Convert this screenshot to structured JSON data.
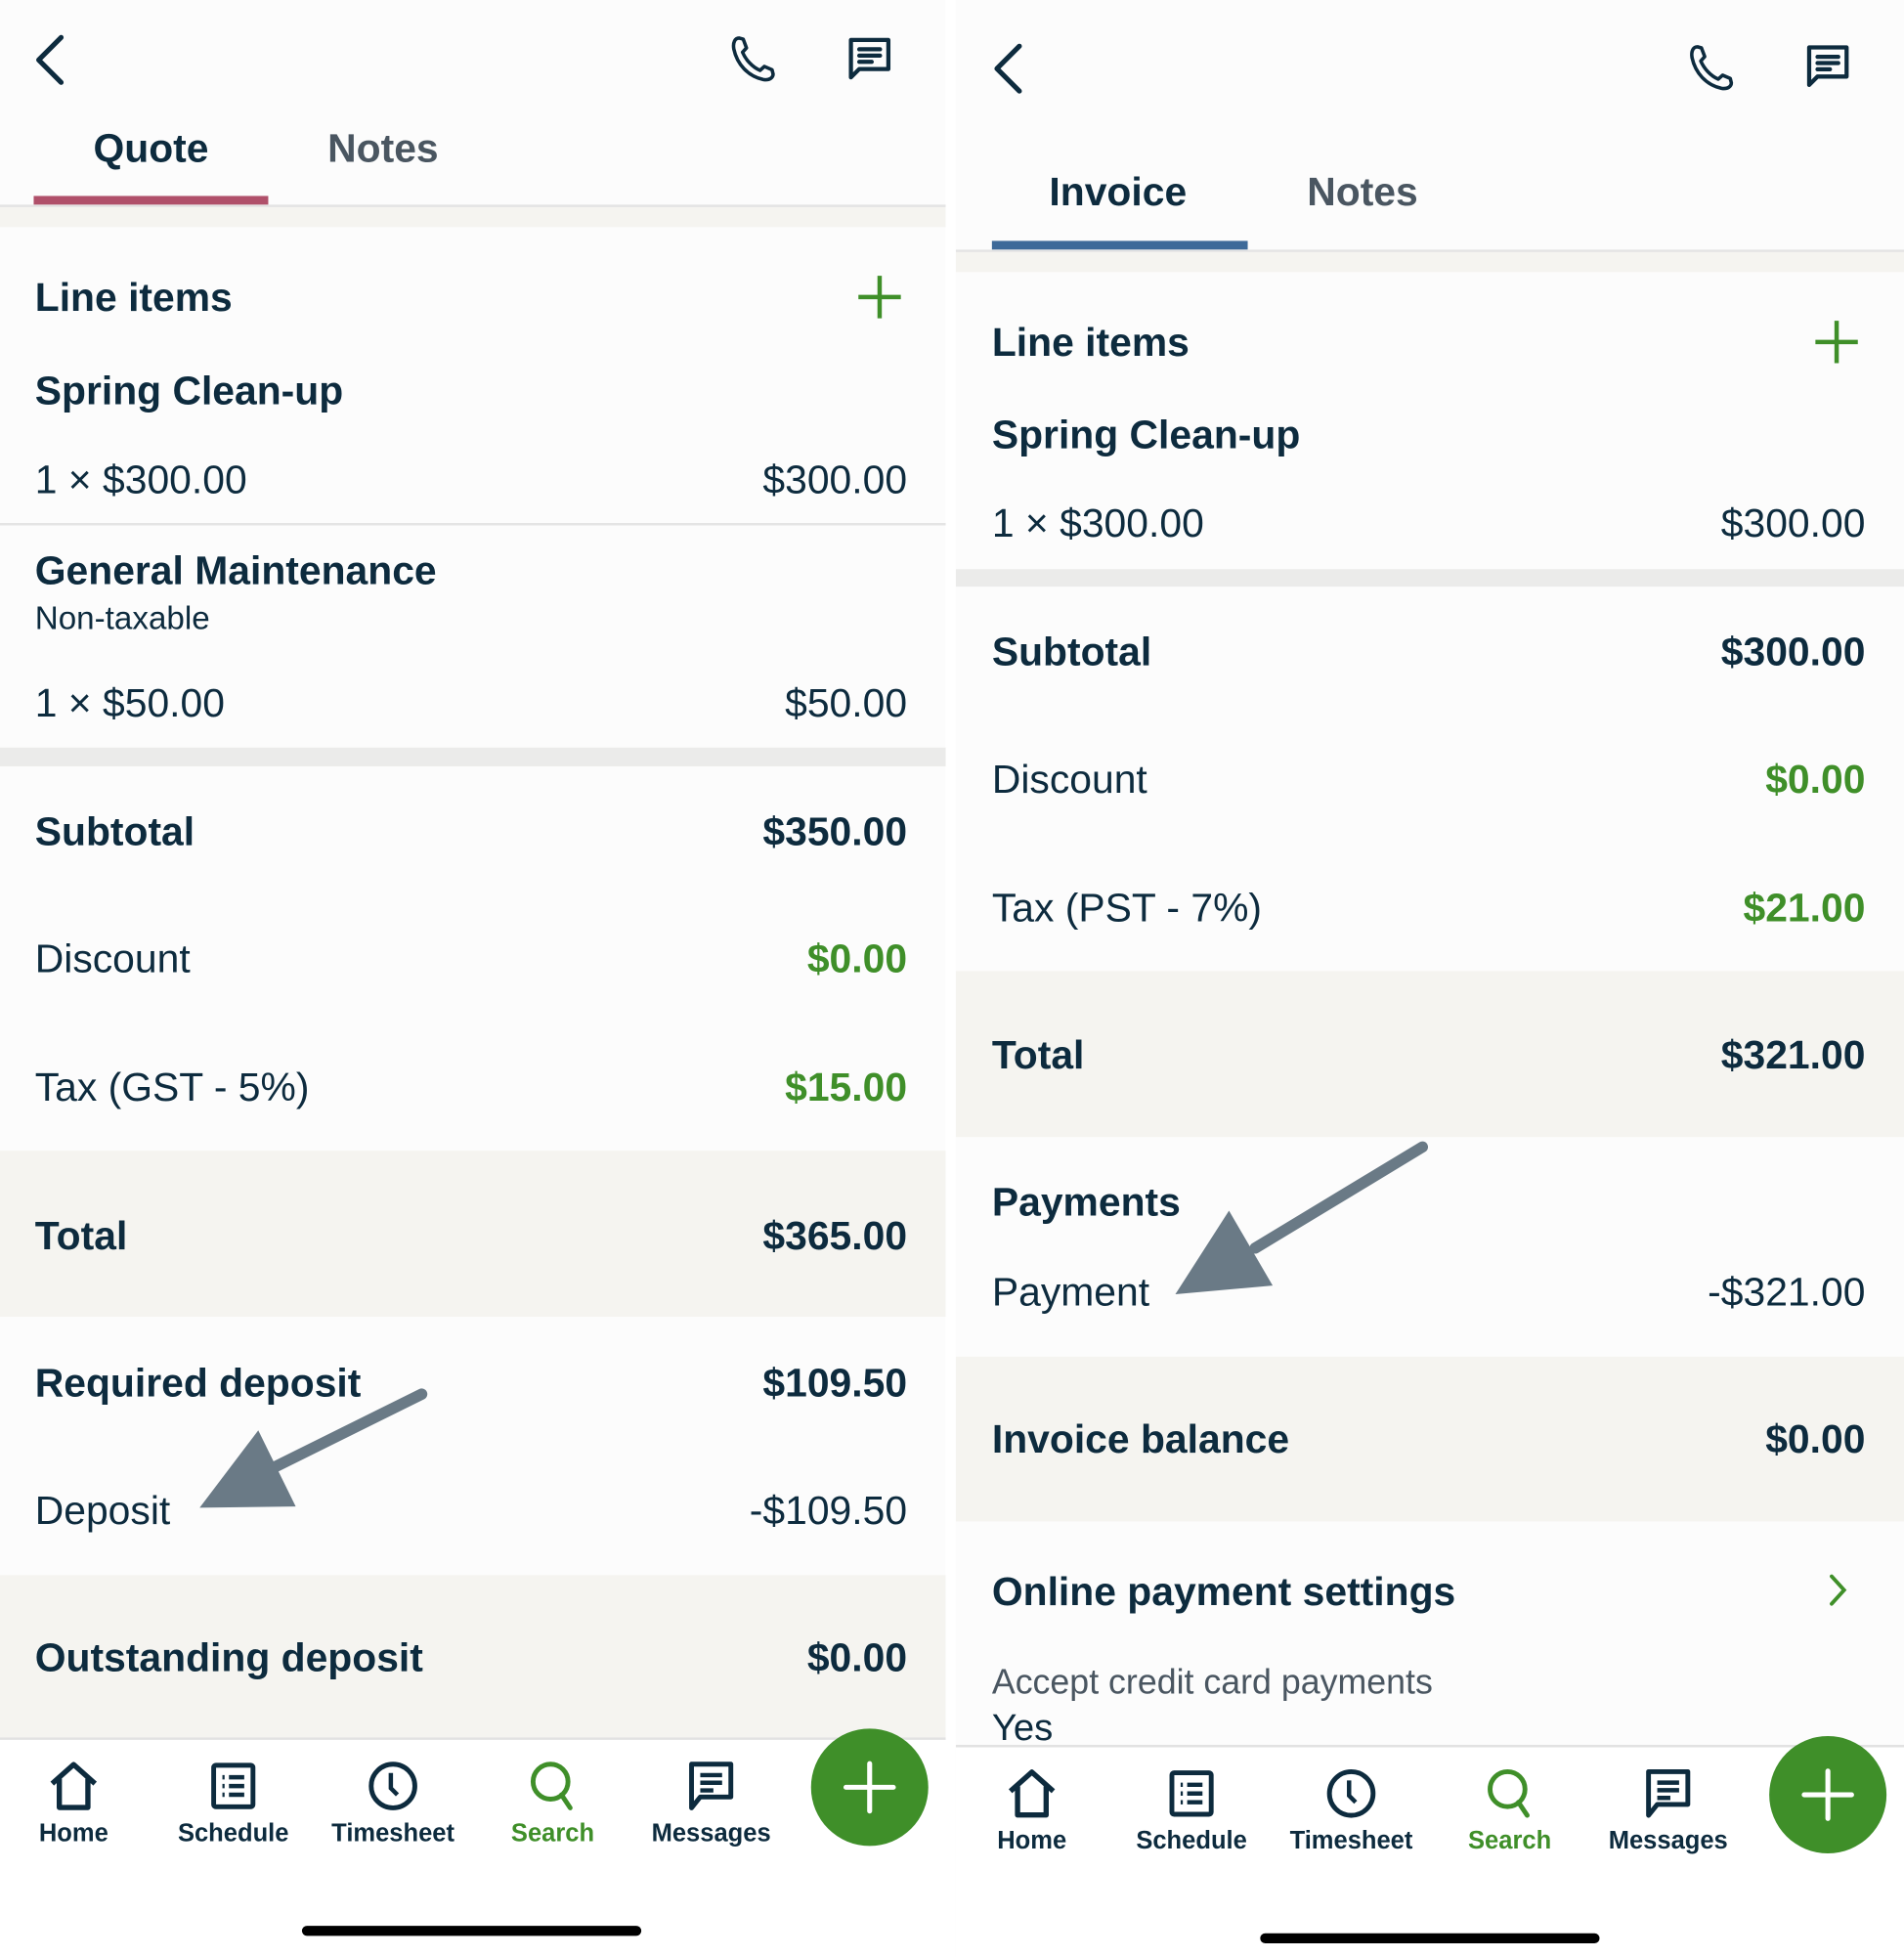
{
  "colors": {
    "text": "#0d2b3e",
    "green": "#3f8f29",
    "quote_tab": "#b0506a",
    "invoice_tab": "#3d6a99",
    "band": "#f5f4f0",
    "arrow": "#6a7a86"
  },
  "quote": {
    "tabs": [
      {
        "label": "Quote",
        "active": true
      },
      {
        "label": "Notes",
        "active": false
      }
    ],
    "line_items_title": "Line items",
    "items": [
      {
        "name": "Spring Clean-up",
        "qty_price": "1 × $300.00",
        "total": "$300.00"
      },
      {
        "name": "General Maintenance",
        "note": "Non-taxable",
        "qty_price": "1 × $50.00",
        "total": "$50.00"
      }
    ],
    "subtotal": {
      "label": "Subtotal",
      "value": "$350.00"
    },
    "discount": {
      "label": "Discount",
      "value": "$0.00"
    },
    "tax": {
      "label": "Tax (GST - 5%)",
      "value": "$15.00"
    },
    "total": {
      "label": "Total",
      "value": "$365.00"
    },
    "required_deposit": {
      "label": "Required deposit",
      "value": "$109.50"
    },
    "deposit": {
      "label": "Deposit",
      "value": "-$109.50"
    },
    "outstanding_deposit": {
      "label": "Outstanding deposit",
      "value": "$0.00"
    }
  },
  "invoice": {
    "tabs": [
      {
        "label": "Invoice",
        "active": true
      },
      {
        "label": "Notes",
        "active": false
      }
    ],
    "line_items_title": "Line items",
    "items": [
      {
        "name": "Spring Clean-up",
        "qty_price": "1 × $300.00",
        "total": "$300.00"
      }
    ],
    "subtotal": {
      "label": "Subtotal",
      "value": "$300.00"
    },
    "discount": {
      "label": "Discount",
      "value": "$0.00"
    },
    "tax": {
      "label": "Tax (PST - 7%)",
      "value": "$21.00"
    },
    "total": {
      "label": "Total",
      "value": "$321.00"
    },
    "payments_title": "Payments",
    "payment": {
      "label": "Payment",
      "value": "-$321.00"
    },
    "balance": {
      "label": "Invoice balance",
      "value": "$0.00"
    },
    "online_settings": {
      "label": "Online payment settings",
      "accept_label": "Accept credit card payments",
      "accept_value": "Yes"
    }
  },
  "nav": {
    "items": [
      {
        "label": "Home",
        "icon": "home-icon"
      },
      {
        "label": "Schedule",
        "icon": "schedule-icon"
      },
      {
        "label": "Timesheet",
        "icon": "clock-icon"
      },
      {
        "label": "Search",
        "icon": "search-icon",
        "active": true
      },
      {
        "label": "Messages",
        "icon": "messages-icon"
      }
    ],
    "fab_icon": "plus-icon"
  }
}
